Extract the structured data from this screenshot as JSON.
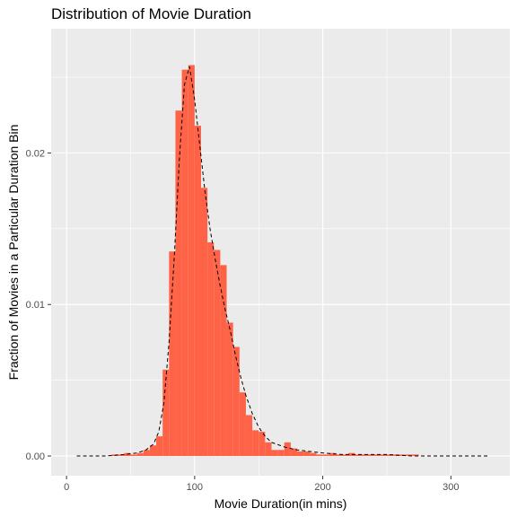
{
  "chart_data": {
    "type": "bar",
    "title": "Distribution of Movie Duration",
    "xlabel": "Movie Duration(in mins)",
    "ylabel": "Fraction of Movies in a Particular Duration Bin",
    "xlim": [
      -12,
      346
    ],
    "ylim": [
      -0.0013,
      0.0282
    ],
    "x_ticks": [
      0,
      100,
      200,
      300
    ],
    "y_ticks": [
      0.0,
      0.01,
      0.02
    ],
    "x_tick_labels": [
      "0",
      "100",
      "200",
      "300"
    ],
    "y_tick_labels": [
      "0.00",
      "0.01",
      "0.02"
    ],
    "grid": true,
    "bin_width": 5,
    "bins_start": [
      35,
      40,
      45,
      50,
      55,
      60,
      65,
      70,
      75,
      80,
      85,
      90,
      95,
      100,
      105,
      110,
      115,
      120,
      125,
      130,
      135,
      140,
      145,
      150,
      155,
      160,
      165,
      170,
      175,
      180,
      185,
      190,
      195,
      200,
      205,
      210,
      215,
      220,
      225,
      230,
      235,
      240,
      245,
      250,
      255,
      260,
      265,
      270
    ],
    "values": [
      0.0001,
      0.0001,
      0.0002,
      0.0001,
      0.0002,
      0.0004,
      0.0007,
      0.0013,
      0.0057,
      0.0135,
      0.0228,
      0.0255,
      0.0258,
      0.0218,
      0.0177,
      0.0141,
      0.0136,
      0.0126,
      0.0088,
      0.0072,
      0.0042,
      0.0027,
      0.0017,
      0.0016,
      0.0009,
      0.0004,
      0.0004,
      0.0009,
      0.0005,
      0.0003,
      0.0003,
      0.0002,
      0.0001,
      0.0001,
      0.0002,
      0.0001,
      0.0001,
      0.0002,
      0.0001,
      0.0001,
      0.0001,
      0.0001,
      0.0001,
      0.0001,
      0.0001,
      0.0001,
      0.0001,
      0.0001
    ],
    "density_x": [
      8,
      30,
      45,
      55,
      62,
      68,
      72,
      76,
      80,
      84,
      88,
      92,
      96,
      100,
      104,
      108,
      112,
      116,
      120,
      124,
      128,
      132,
      136,
      140,
      145,
      150,
      155,
      160,
      170,
      180,
      190,
      200,
      215,
      230,
      250,
      270,
      290,
      310,
      330
    ],
    "density_y": [
      0.0,
      0.0,
      0.0001,
      0.0002,
      0.0004,
      0.0008,
      0.0016,
      0.0035,
      0.0075,
      0.013,
      0.0195,
      0.0245,
      0.0257,
      0.0235,
      0.0205,
      0.0175,
      0.015,
      0.013,
      0.0112,
      0.0096,
      0.0082,
      0.0066,
      0.0052,
      0.004,
      0.0028,
      0.0019,
      0.0013,
      0.0009,
      0.0006,
      0.0004,
      0.0003,
      0.0002,
      0.0001,
      0.0001,
      0.0001,
      0.0,
      0.0,
      0.0,
      0.0
    ],
    "colors": {
      "bars": "#ff6347",
      "density": "#000000",
      "panel": "#ebebeb",
      "grid": "#ffffff"
    }
  }
}
